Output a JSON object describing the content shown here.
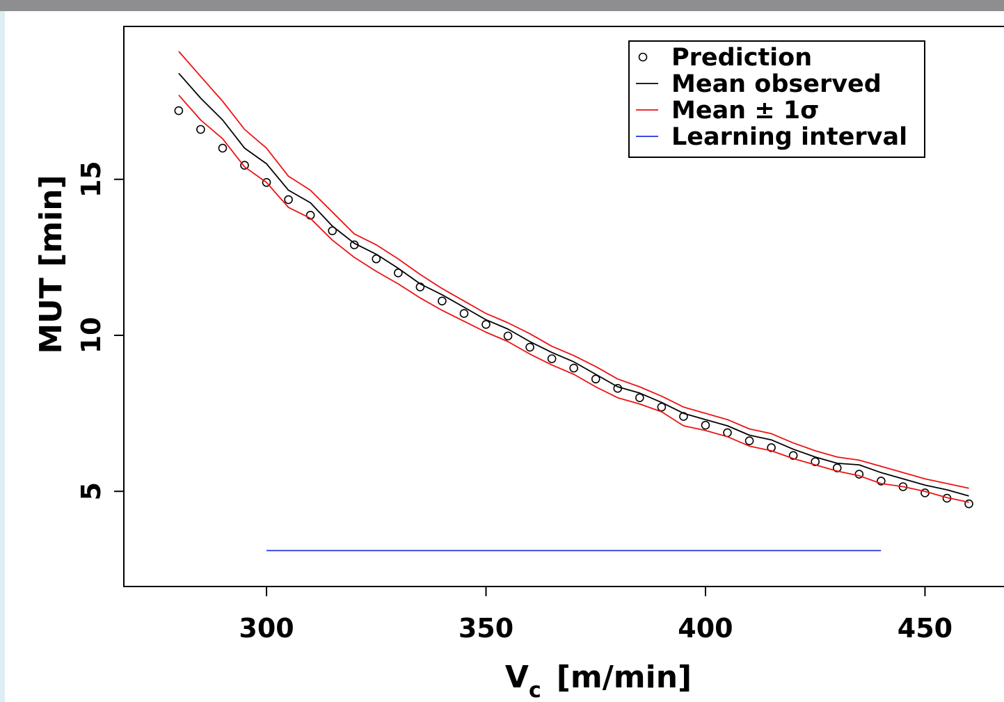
{
  "chart_data": {
    "type": "line",
    "title": "",
    "xlabel": {
      "main": "V",
      "sub": "c",
      "unit": "[m/min]"
    },
    "ylabel": "MUT [min]",
    "xlim": [
      267.5,
      468
    ],
    "ylim": [
      1.95,
      19.9
    ],
    "x_ticks": [
      300,
      350,
      400,
      450
    ],
    "y_ticks": [
      5,
      10,
      15
    ],
    "legend_position": "top-right",
    "grid": false,
    "colors": {
      "prediction": "#000000",
      "mean_observed": "#000000",
      "mean_pm_sigma": "#ee1111",
      "learning_interval": "#2233dd",
      "top_bar": "#8e8e90",
      "left_strip": "#ddeef2"
    },
    "series": [
      {
        "name": "Prediction",
        "marker": "circle",
        "x": [
          280,
          285,
          290,
          295,
          300,
          305,
          310,
          315,
          320,
          325,
          330,
          335,
          340,
          345,
          350,
          355,
          360,
          365,
          370,
          375,
          380,
          385,
          390,
          395,
          400,
          405,
          410,
          415,
          420,
          425,
          430,
          435,
          440,
          445,
          450,
          455,
          460
        ],
        "y": [
          17.2,
          16.6,
          16.0,
          15.45,
          14.9,
          14.35,
          13.85,
          13.35,
          12.9,
          12.45,
          12.0,
          11.55,
          11.1,
          10.7,
          10.35,
          9.98,
          9.62,
          9.25,
          8.95,
          8.6,
          8.3,
          8.0,
          7.7,
          7.4,
          7.12,
          6.88,
          6.62,
          6.4,
          6.15,
          5.95,
          5.75,
          5.55,
          5.33,
          5.15,
          4.95,
          4.78,
          4.6
        ]
      },
      {
        "name": "Mean observed",
        "x": [
          280,
          285,
          290,
          295,
          300,
          305,
          310,
          315,
          320,
          325,
          330,
          335,
          340,
          345,
          350,
          355,
          360,
          365,
          370,
          375,
          380,
          385,
          390,
          395,
          400,
          405,
          410,
          415,
          420,
          425,
          430,
          435,
          440,
          445,
          450,
          455,
          460
        ],
        "y": [
          18.4,
          17.6,
          16.9,
          16.0,
          15.5,
          14.65,
          14.25,
          13.5,
          12.95,
          12.6,
          12.15,
          11.65,
          11.3,
          10.9,
          10.5,
          10.2,
          9.8,
          9.45,
          9.15,
          8.75,
          8.35,
          8.15,
          7.85,
          7.5,
          7.3,
          7.1,
          6.8,
          6.65,
          6.35,
          6.1,
          5.9,
          5.85,
          5.6,
          5.4,
          5.2,
          5.05,
          4.85
        ]
      },
      {
        "name": "Mean ± 1σ",
        "role": "upper",
        "x": [
          280,
          285,
          290,
          295,
          300,
          305,
          310,
          315,
          320,
          325,
          330,
          335,
          340,
          345,
          350,
          355,
          360,
          365,
          370,
          375,
          380,
          385,
          390,
          395,
          400,
          405,
          410,
          415,
          420,
          425,
          430,
          435,
          440,
          445,
          450,
          455,
          460
        ],
        "y": [
          19.1,
          18.3,
          17.5,
          16.6,
          16.0,
          15.1,
          14.65,
          13.95,
          13.25,
          12.9,
          12.45,
          11.95,
          11.5,
          11.1,
          10.7,
          10.4,
          10.05,
          9.65,
          9.35,
          9.0,
          8.6,
          8.35,
          8.05,
          7.7,
          7.5,
          7.3,
          7.0,
          6.85,
          6.55,
          6.3,
          6.1,
          6.0,
          5.8,
          5.6,
          5.4,
          5.25,
          5.1
        ]
      },
      {
        "name": "Mean ± 1σ",
        "role": "lower",
        "x": [
          280,
          285,
          290,
          295,
          300,
          305,
          310,
          315,
          320,
          325,
          330,
          335,
          340,
          345,
          350,
          355,
          360,
          365,
          370,
          375,
          380,
          385,
          390,
          395,
          400,
          405,
          410,
          415,
          420,
          425,
          430,
          435,
          440,
          445,
          450,
          455,
          460
        ],
        "y": [
          17.7,
          16.9,
          16.3,
          15.4,
          14.9,
          14.1,
          13.75,
          13.05,
          12.5,
          12.05,
          11.65,
          11.2,
          10.8,
          10.45,
          10.1,
          9.8,
          9.4,
          9.05,
          8.75,
          8.35,
          8.0,
          7.8,
          7.55,
          7.1,
          6.95,
          6.75,
          6.45,
          6.3,
          6.05,
          5.85,
          5.65,
          5.5,
          5.25,
          5.15,
          5.0,
          4.8,
          4.65
        ]
      },
      {
        "name": "Learning interval",
        "x": [
          300,
          440
        ],
        "y": [
          3.1,
          3.1
        ]
      }
    ],
    "legend": [
      {
        "label": "Prediction",
        "symbol": "circle",
        "color": "#000000"
      },
      {
        "label": "Mean observed",
        "symbol": "line",
        "color": "#000000"
      },
      {
        "label": "Mean ± 1σ",
        "symbol": "line",
        "color": "#ee1111"
      },
      {
        "label": "Learning interval",
        "symbol": "line",
        "color": "#2233dd"
      }
    ]
  }
}
